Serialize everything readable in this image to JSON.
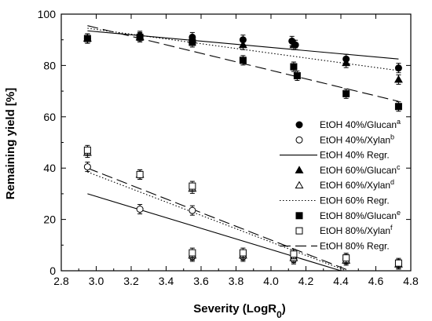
{
  "chart_data": {
    "type": "scatter",
    "xlabel": "Severity (LogR",
    "xlabel_sub": "0",
    "xlabel_close": ")",
    "ylabel": "Remaining yield [%]",
    "xlim": [
      2.8,
      4.8
    ],
    "ylim": [
      0,
      100
    ],
    "x_ticks": [
      "2.8",
      "3.0",
      "3.2",
      "3.4",
      "3.6",
      "3.8",
      "4.0",
      "4.2",
      "4.4",
      "4.6",
      "4.8"
    ],
    "y_ticks": [
      "0",
      "20",
      "40",
      "60",
      "80",
      "100"
    ],
    "grid": false,
    "legend_position": "right",
    "series": [
      {
        "name": "EtOH 40%/Glucan",
        "sup": "a",
        "marker": "filled-circle",
        "points": [
          [
            2.95,
            90.5
          ],
          [
            3.25,
            91.5
          ],
          [
            3.55,
            91
          ],
          [
            3.84,
            90
          ],
          [
            4.12,
            89.5
          ],
          [
            4.14,
            88
          ],
          [
            4.43,
            82.5
          ],
          [
            4.73,
            79
          ]
        ]
      },
      {
        "name": "EtOH 40%/Xylan",
        "sup": "b",
        "marker": "open-circle",
        "points": [
          [
            2.95,
            40.5
          ],
          [
            3.25,
            24
          ],
          [
            3.55,
            23.5
          ],
          [
            3.55,
            5.5
          ],
          [
            3.84,
            5.5
          ],
          [
            4.13,
            4.5
          ],
          [
            4.43,
            4.5
          ],
          [
            4.73,
            2.5
          ]
        ]
      },
      {
        "name": "EtOH 40% Regr.",
        "line": "solid",
        "points": [
          [
            2.95,
            93.5
          ],
          [
            4.73,
            82.5
          ]
        ]
      },
      {
        "name": "EtOH 60%/Glucan",
        "sup": "c",
        "marker": "filled-triangle",
        "points": [
          [
            2.95,
            90.5
          ],
          [
            3.25,
            91
          ],
          [
            3.55,
            90
          ],
          [
            3.84,
            88
          ],
          [
            4.13,
            88
          ],
          [
            4.43,
            81
          ],
          [
            4.73,
            74.5
          ]
        ]
      },
      {
        "name": "EtOH 60%/Xylan",
        "sup": "d",
        "marker": "open-triangle",
        "points": [
          [
            2.95,
            46
          ],
          [
            3.25,
            37.5
          ],
          [
            3.55,
            32
          ],
          [
            3.55,
            6
          ],
          [
            3.84,
            6
          ],
          [
            4.13,
            5
          ],
          [
            4.43,
            4
          ],
          [
            4.73,
            2.5
          ]
        ]
      },
      {
        "name": "EtOH 60% Regr.",
        "line": "dotted",
        "points": [
          [
            2.95,
            94.5
          ],
          [
            4.73,
            78
          ],
          [
            2.95,
            38.5
          ],
          [
            4.43,
            0
          ]
        ]
      },
      {
        "name": "EtOH 80%/Glucan",
        "sup": "e",
        "marker": "filled-square",
        "points": [
          [
            2.95,
            90.5
          ],
          [
            3.25,
            91
          ],
          [
            3.55,
            89
          ],
          [
            3.84,
            82
          ],
          [
            4.13,
            79.5
          ],
          [
            4.15,
            76
          ],
          [
            4.43,
            69
          ],
          [
            4.73,
            64
          ]
        ]
      },
      {
        "name": "EtOH 80%/Xylan",
        "sup": "f",
        "marker": "open-square",
        "points": [
          [
            2.95,
            47
          ],
          [
            3.25,
            37.5
          ],
          [
            3.55,
            33
          ],
          [
            3.55,
            7
          ],
          [
            3.84,
            7
          ],
          [
            4.13,
            6.5
          ],
          [
            4.43,
            5
          ],
          [
            4.73,
            3
          ]
        ]
      },
      {
        "name": "EtOH 80% Regr.",
        "line": "dashed",
        "points": [
          [
            2.95,
            95.5
          ],
          [
            4.73,
            66
          ],
          [
            2.95,
            40
          ],
          [
            4.45,
            0
          ]
        ]
      }
    ],
    "extra_lines": [
      {
        "series": "EtOH 40% Regr.",
        "points": [
          [
            2.95,
            30
          ],
          [
            4.4,
            0
          ]
        ]
      }
    ]
  }
}
